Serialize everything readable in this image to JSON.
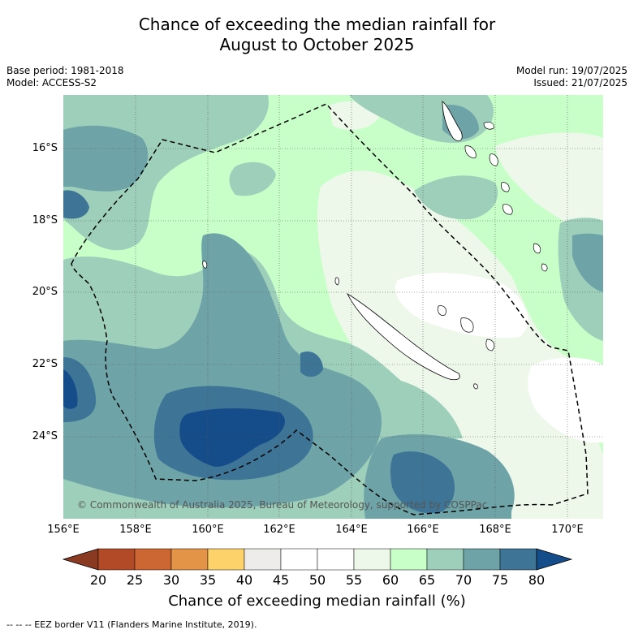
{
  "title_line1": "Chance of exceeding the median rainfall for",
  "title_line2": "August to October 2025",
  "base_period": "Base period: 1981-2018",
  "model": "Model: ACCESS-S2",
  "model_run": "Model run: 19/07/2025",
  "issued": "Issued: 21/07/2025",
  "copyright": "© Commonwealth of Australia 2025, Bureau of Meteorology, supported by COSPPac",
  "lat_labels": [
    "16°S",
    "18°S",
    "20°S",
    "22°S",
    "24°S"
  ],
  "lon_labels": [
    "156°E",
    "158°E",
    "160°E",
    "162°E",
    "164°E",
    "166°E",
    "168°E",
    "170°E"
  ],
  "colorbar": {
    "ticks": [
      "20",
      "25",
      "30",
      "35",
      "40",
      "45",
      "50",
      "55",
      "60",
      "65",
      "70",
      "75",
      "80"
    ],
    "colors": [
      "#8b3a22",
      "#b34a27",
      "#cc6633",
      "#e39447",
      "#fdd26b",
      "#eeeceb",
      "#ffffff",
      "#ffffff",
      "#edf8ea",
      "#c8fec8",
      "#9dcfba",
      "#6ea4a7",
      "#3e7596",
      "#154d8a"
    ],
    "title": "Chance of exceeding median rainfall (%)"
  },
  "footnote": "--  --  -- EEZ border V11 (Flanders Marine Institute, 2019)."
}
